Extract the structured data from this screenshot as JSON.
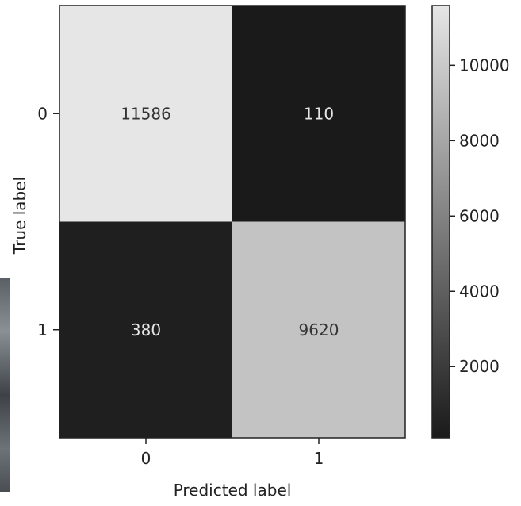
{
  "chart_data": {
    "type": "heatmap",
    "title": "",
    "xlabel": "Predicted label",
    "ylabel": "True label",
    "x_categories": [
      "0",
      "1"
    ],
    "y_categories": [
      "0",
      "1"
    ],
    "matrix": [
      [
        11586,
        110
      ],
      [
        380,
        9620
      ]
    ],
    "cell_labels": [
      [
        "11586",
        "110"
      ],
      [
        "380",
        "9620"
      ]
    ],
    "colormap": "gray",
    "colorbar": {
      "min": 110,
      "max": 11586,
      "ticks": [
        2000,
        4000,
        6000,
        8000,
        10000
      ],
      "tick_labels": [
        "2000",
        "4000",
        "6000",
        "8000",
        "10000"
      ]
    },
    "grid": false
  }
}
